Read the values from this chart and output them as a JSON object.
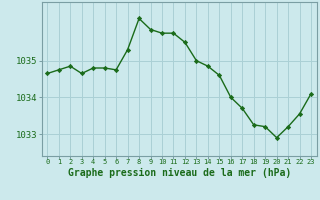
{
  "x": [
    0,
    1,
    2,
    3,
    4,
    5,
    6,
    7,
    8,
    9,
    10,
    11,
    12,
    13,
    14,
    15,
    16,
    17,
    18,
    19,
    20,
    21,
    22,
    23
  ],
  "y": [
    1034.65,
    1034.75,
    1034.85,
    1034.65,
    1034.8,
    1034.8,
    1034.75,
    1035.3,
    1036.15,
    1035.85,
    1035.75,
    1035.75,
    1035.5,
    1035.0,
    1034.85,
    1034.6,
    1034.0,
    1033.7,
    1033.25,
    1033.2,
    1032.9,
    1033.2,
    1033.55,
    1034.1
  ],
  "line_color": "#1a6b1a",
  "marker": "D",
  "marker_size": 2.2,
  "bg_color": "#cce9ec",
  "grid_color": "#aad0d5",
  "label_color": "#1a6b1a",
  "xlabel": "Graphe pression niveau de la mer (hPa)",
  "yticks": [
    1033,
    1034,
    1035
  ],
  "ylim": [
    1032.4,
    1036.6
  ],
  "xlim": [
    -0.5,
    23.5
  ],
  "xtick_labels": [
    "0",
    "1",
    "2",
    "3",
    "4",
    "5",
    "6",
    "7",
    "8",
    "9",
    "10",
    "11",
    "12",
    "13",
    "14",
    "15",
    "16",
    "17",
    "18",
    "19",
    "20",
    "21",
    "22",
    "23"
  ],
  "xlabel_fontsize": 7.0,
  "ytick_fontsize": 6.5,
  "xtick_fontsize": 5.0
}
